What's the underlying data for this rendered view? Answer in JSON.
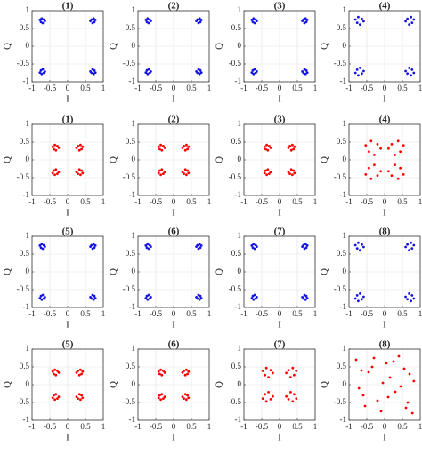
{
  "chart_data": [
    {
      "type": "scatter",
      "title": "(1)",
      "xlabel": "I",
      "ylabel": "Q",
      "xlim": [
        -1,
        1
      ],
      "ylim": [
        -1,
        1
      ],
      "xticks": [
        -1,
        -0.5,
        0,
        0.5,
        1
      ],
      "yticks": [
        -1,
        -0.5,
        0,
        0.5,
        1
      ],
      "grid": true,
      "color": "#1414e6",
      "x": [
        -0.67,
        -0.78,
        -0.7,
        -0.75,
        -0.64,
        -0.73,
        0.67,
        0.78,
        0.7,
        0.75,
        0.64,
        0.73,
        -0.67,
        -0.78,
        -0.7,
        -0.75,
        -0.64,
        -0.73,
        0.67,
        0.78,
        0.7,
        0.75,
        0.64,
        0.73
      ],
      "y": [
        0.75,
        0.74,
        0.65,
        0.68,
        0.71,
        0.78,
        0.75,
        0.74,
        0.65,
        0.68,
        0.71,
        0.78,
        -0.75,
        -0.74,
        -0.65,
        -0.68,
        -0.71,
        -0.78,
        -0.75,
        -0.74,
        -0.65,
        -0.68,
        -0.71,
        -0.78
      ]
    },
    {
      "type": "scatter",
      "title": "(2)",
      "xlabel": "I",
      "ylabel": "Q",
      "xlim": [
        -1,
        1
      ],
      "ylim": [
        -1,
        1
      ],
      "xticks": [
        -1,
        -0.5,
        0,
        0.5,
        1
      ],
      "yticks": [
        -1,
        -0.5,
        0,
        0.5,
        1
      ],
      "grid": true,
      "color": "#1414e6",
      "x": [
        -0.67,
        -0.78,
        -0.7,
        -0.75,
        -0.64,
        -0.73,
        0.67,
        0.78,
        0.7,
        0.75,
        0.64,
        0.73,
        -0.67,
        -0.78,
        -0.7,
        -0.75,
        -0.64,
        -0.73,
        0.67,
        0.78,
        0.7,
        0.75,
        0.64,
        0.73
      ],
      "y": [
        0.75,
        0.74,
        0.65,
        0.68,
        0.71,
        0.78,
        0.75,
        0.74,
        0.65,
        0.68,
        0.71,
        0.78,
        -0.75,
        -0.74,
        -0.65,
        -0.68,
        -0.71,
        -0.78,
        -0.75,
        -0.74,
        -0.65,
        -0.68,
        -0.71,
        -0.78
      ]
    },
    {
      "type": "scatter",
      "title": "(3)",
      "xlabel": "I",
      "ylabel": "Q",
      "xlim": [
        -1,
        1
      ],
      "ylim": [
        -1,
        1
      ],
      "xticks": [
        -1,
        -0.5,
        0,
        0.5,
        1
      ],
      "yticks": [
        -1,
        -0.5,
        0,
        0.5,
        1
      ],
      "grid": true,
      "color": "#1414e6",
      "x": [
        -0.67,
        -0.78,
        -0.7,
        -0.75,
        -0.64,
        -0.73,
        0.67,
        0.78,
        0.7,
        0.75,
        0.64,
        0.73,
        -0.67,
        -0.78,
        -0.7,
        -0.75,
        -0.64,
        -0.73,
        0.67,
        0.78,
        0.7,
        0.75,
        0.64,
        0.73
      ],
      "y": [
        0.75,
        0.74,
        0.65,
        0.68,
        0.71,
        0.78,
        0.75,
        0.74,
        0.65,
        0.68,
        0.71,
        0.78,
        -0.75,
        -0.74,
        -0.65,
        -0.68,
        -0.71,
        -0.78,
        -0.75,
        -0.74,
        -0.65,
        -0.68,
        -0.71,
        -0.78
      ]
    },
    {
      "type": "scatter",
      "title": "(4)",
      "xlabel": "I",
      "ylabel": "Q",
      "xlim": [
        -1,
        1
      ],
      "ylim": [
        -1,
        1
      ],
      "xticks": [
        -1,
        -0.5,
        0,
        0.5,
        1
      ],
      "yticks": [
        -1,
        -0.5,
        0,
        0.5,
        1
      ],
      "grid": true,
      "color": "#1414e6",
      "x": [
        -0.64,
        -0.82,
        -0.69,
        -0.77,
        -0.59,
        -0.74,
        0.64,
        0.82,
        0.69,
        0.77,
        0.59,
        0.74,
        -0.64,
        -0.82,
        -0.69,
        -0.77,
        -0.59,
        -0.74,
        0.64,
        0.82,
        0.69,
        0.77,
        0.59,
        0.74
      ],
      "y": [
        0.77,
        0.75,
        0.61,
        0.66,
        0.7,
        0.82,
        0.77,
        0.75,
        0.61,
        0.66,
        0.7,
        0.82,
        -0.77,
        -0.75,
        -0.61,
        -0.66,
        -0.7,
        -0.82,
        -0.77,
        -0.75,
        -0.61,
        -0.66,
        -0.7,
        -0.82
      ]
    },
    {
      "type": "scatter",
      "title": "(1)",
      "xlabel": "I",
      "ylabel": "Q",
      "xlim": [
        -1,
        1
      ],
      "ylim": [
        -1,
        1
      ],
      "xticks": [
        -1,
        -0.5,
        0,
        0.5,
        1
      ],
      "yticks": [
        -1,
        -0.5,
        0,
        0.5,
        1
      ],
      "grid": true,
      "color": "#ff0000",
      "x": [
        -0.29,
        -0.42,
        -0.33,
        -0.39,
        -0.25,
        -0.36,
        0.29,
        0.42,
        0.33,
        0.39,
        0.25,
        0.36,
        -0.29,
        -0.42,
        -0.33,
        -0.39,
        -0.25,
        -0.36,
        0.29,
        0.42,
        0.33,
        0.39,
        0.25,
        0.36
      ],
      "y": [
        0.39,
        0.37,
        0.27,
        0.3,
        0.34,
        0.42,
        0.39,
        0.37,
        0.27,
        0.3,
        0.34,
        0.42,
        -0.39,
        -0.37,
        -0.27,
        -0.3,
        -0.34,
        -0.42,
        -0.39,
        -0.37,
        -0.27,
        -0.3,
        -0.34,
        -0.42
      ]
    },
    {
      "type": "scatter",
      "title": "(2)",
      "xlabel": "I",
      "ylabel": "Q",
      "xlim": [
        -1,
        1
      ],
      "ylim": [
        -1,
        1
      ],
      "xticks": [
        -1,
        -0.5,
        0,
        0.5,
        1
      ],
      "yticks": [
        -1,
        -0.5,
        0,
        0.5,
        1
      ],
      "grid": true,
      "color": "#ff0000",
      "x": [
        -0.29,
        -0.42,
        -0.33,
        -0.39,
        -0.25,
        -0.36,
        0.29,
        0.42,
        0.33,
        0.39,
        0.25,
        0.36,
        -0.29,
        -0.42,
        -0.33,
        -0.39,
        -0.25,
        -0.36,
        0.29,
        0.42,
        0.33,
        0.39,
        0.25,
        0.36
      ],
      "y": [
        0.39,
        0.37,
        0.27,
        0.3,
        0.34,
        0.42,
        0.39,
        0.37,
        0.27,
        0.3,
        0.34,
        0.42,
        -0.39,
        -0.37,
        -0.27,
        -0.3,
        -0.34,
        -0.42,
        -0.39,
        -0.37,
        -0.27,
        -0.3,
        -0.34,
        -0.42
      ]
    },
    {
      "type": "scatter",
      "title": "(3)",
      "xlabel": "I",
      "ylabel": "Q",
      "xlim": [
        -1,
        1
      ],
      "ylim": [
        -1,
        1
      ],
      "xticks": [
        -1,
        -0.5,
        0,
        0.5,
        1
      ],
      "yticks": [
        -1,
        -0.5,
        0,
        0.5,
        1
      ],
      "grid": true,
      "color": "#ff0000",
      "x": [
        -0.29,
        -0.42,
        -0.33,
        -0.39,
        -0.25,
        -0.36,
        0.29,
        0.42,
        0.33,
        0.39,
        0.25,
        0.36,
        -0.29,
        -0.42,
        -0.33,
        -0.39,
        -0.25,
        -0.36,
        0.29,
        0.42,
        0.33,
        0.39,
        0.25,
        0.36
      ],
      "y": [
        0.39,
        0.37,
        0.27,
        0.3,
        0.34,
        0.42,
        0.39,
        0.37,
        0.27,
        0.3,
        0.34,
        0.42,
        -0.39,
        -0.37,
        -0.27,
        -0.3,
        -0.34,
        -0.42,
        -0.39,
        -0.37,
        -0.27,
        -0.3,
        -0.34,
        -0.42
      ]
    },
    {
      "type": "scatter",
      "title": "(4)",
      "xlabel": "I",
      "ylabel": "Q",
      "xlim": [
        -1,
        1
      ],
      "ylim": [
        -1,
        1
      ],
      "xticks": [
        -1,
        -0.5,
        0,
        0.5,
        1
      ],
      "yticks": [
        -1,
        -0.5,
        0,
        0.5,
        1
      ],
      "grid": true,
      "color": "#ff0000",
      "x": [
        -0.2,
        -0.53,
        -0.29,
        -0.44,
        -0.11,
        -0.38,
        0.2,
        0.53,
        0.29,
        0.44,
        0.11,
        0.38,
        -0.2,
        -0.53,
        -0.29,
        -0.44,
        -0.11,
        -0.38,
        0.2,
        0.53,
        0.29,
        0.44,
        0.11,
        0.38
      ],
      "y": [
        0.44,
        0.41,
        0.14,
        0.23,
        0.32,
        0.53,
        0.44,
        0.41,
        0.14,
        0.23,
        0.32,
        0.53,
        -0.44,
        -0.41,
        -0.14,
        -0.23,
        -0.32,
        -0.53,
        -0.44,
        -0.41,
        -0.14,
        -0.23,
        -0.32,
        -0.53
      ]
    },
    {
      "type": "scatter",
      "title": "(5)",
      "xlabel": "I",
      "ylabel": "Q",
      "xlim": [
        -1,
        1
      ],
      "ylim": [
        -1,
        1
      ],
      "xticks": [
        -1,
        -0.5,
        0,
        0.5,
        1
      ],
      "yticks": [
        -1,
        -0.5,
        0,
        0.5,
        1
      ],
      "grid": true,
      "color": "#1414e6",
      "x": [
        -0.67,
        -0.78,
        -0.7,
        -0.75,
        -0.64,
        -0.73,
        0.67,
        0.78,
        0.7,
        0.75,
        0.64,
        0.73,
        -0.67,
        -0.78,
        -0.7,
        -0.75,
        -0.64,
        -0.73,
        0.67,
        0.78,
        0.7,
        0.75,
        0.64,
        0.73
      ],
      "y": [
        0.75,
        0.74,
        0.65,
        0.68,
        0.71,
        0.78,
        0.75,
        0.74,
        0.65,
        0.68,
        0.71,
        0.78,
        -0.75,
        -0.74,
        -0.65,
        -0.68,
        -0.71,
        -0.78,
        -0.75,
        -0.74,
        -0.65,
        -0.68,
        -0.71,
        -0.78
      ]
    },
    {
      "type": "scatter",
      "title": "(6)",
      "xlabel": "I",
      "ylabel": "Q",
      "xlim": [
        -1,
        1
      ],
      "ylim": [
        -1,
        1
      ],
      "xticks": [
        -1,
        -0.5,
        0,
        0.5,
        1
      ],
      "yticks": [
        -1,
        -0.5,
        0,
        0.5,
        1
      ],
      "grid": true,
      "color": "#1414e6",
      "x": [
        -0.67,
        -0.78,
        -0.7,
        -0.75,
        -0.64,
        -0.73,
        0.67,
        0.78,
        0.7,
        0.75,
        0.64,
        0.73,
        -0.67,
        -0.78,
        -0.7,
        -0.75,
        -0.64,
        -0.73,
        0.67,
        0.78,
        0.7,
        0.75,
        0.64,
        0.73
      ],
      "y": [
        0.75,
        0.74,
        0.65,
        0.68,
        0.71,
        0.78,
        0.75,
        0.74,
        0.65,
        0.68,
        0.71,
        0.78,
        -0.75,
        -0.74,
        -0.65,
        -0.68,
        -0.71,
        -0.78,
        -0.75,
        -0.74,
        -0.65,
        -0.68,
        -0.71,
        -0.78
      ]
    },
    {
      "type": "scatter",
      "title": "(7)",
      "xlabel": "I",
      "ylabel": "Q",
      "xlim": [
        -1,
        1
      ],
      "ylim": [
        -1,
        1
      ],
      "xticks": [
        -1,
        -0.5,
        0,
        0.5,
        1
      ],
      "yticks": [
        -1,
        -0.5,
        0,
        0.5,
        1
      ],
      "grid": true,
      "color": "#1414e6",
      "x": [
        -0.67,
        -0.78,
        -0.7,
        -0.75,
        -0.64,
        -0.73,
        0.67,
        0.78,
        0.7,
        0.75,
        0.64,
        0.73,
        -0.67,
        -0.78,
        -0.7,
        -0.75,
        -0.64,
        -0.73,
        0.67,
        0.78,
        0.7,
        0.75,
        0.64,
        0.73
      ],
      "y": [
        0.75,
        0.74,
        0.65,
        0.68,
        0.71,
        0.78,
        0.75,
        0.74,
        0.65,
        0.68,
        0.71,
        0.78,
        -0.75,
        -0.74,
        -0.65,
        -0.68,
        -0.71,
        -0.78,
        -0.75,
        -0.74,
        -0.65,
        -0.68,
        -0.71,
        -0.78
      ]
    },
    {
      "type": "scatter",
      "title": "(8)",
      "xlabel": "I",
      "ylabel": "Q",
      "xlim": [
        -1,
        1
      ],
      "ylim": [
        -1,
        1
      ],
      "xticks": [
        -1,
        -0.5,
        0,
        0.5,
        1
      ],
      "yticks": [
        -1,
        -0.5,
        0,
        0.5,
        1
      ],
      "grid": true,
      "color": "#1414e6",
      "x": [
        -0.64,
        -0.82,
        -0.69,
        -0.77,
        -0.59,
        -0.74,
        0.64,
        0.82,
        0.69,
        0.77,
        0.59,
        0.74,
        -0.64,
        -0.82,
        -0.69,
        -0.77,
        -0.59,
        -0.74,
        0.64,
        0.82,
        0.69,
        0.77,
        0.59,
        0.74
      ],
      "y": [
        0.77,
        0.75,
        0.61,
        0.66,
        0.7,
        0.82,
        0.77,
        0.75,
        0.61,
        0.66,
        0.7,
        0.82,
        -0.77,
        -0.75,
        -0.61,
        -0.66,
        -0.7,
        -0.82,
        -0.77,
        -0.75,
        -0.61,
        -0.66,
        -0.7,
        -0.82
      ]
    },
    {
      "type": "scatter",
      "title": "(5)",
      "xlabel": "I",
      "ylabel": "Q",
      "xlim": [
        -1,
        1
      ],
      "ylim": [
        -1,
        1
      ],
      "xticks": [
        -1,
        -0.5,
        0,
        0.5,
        1
      ],
      "yticks": [
        -1,
        -0.5,
        0,
        0.5,
        1
      ],
      "grid": true,
      "color": "#ff0000",
      "x": [
        -0.29,
        -0.42,
        -0.33,
        -0.39,
        -0.25,
        -0.36,
        0.29,
        0.42,
        0.33,
        0.39,
        0.25,
        0.36,
        -0.29,
        -0.42,
        -0.33,
        -0.39,
        -0.25,
        -0.36,
        0.29,
        0.42,
        0.33,
        0.39,
        0.25,
        0.36
      ],
      "y": [
        0.39,
        0.37,
        0.27,
        0.3,
        0.34,
        0.42,
        0.39,
        0.37,
        0.27,
        0.3,
        0.34,
        0.42,
        -0.39,
        -0.37,
        -0.27,
        -0.3,
        -0.34,
        -0.42,
        -0.39,
        -0.37,
        -0.27,
        -0.3,
        -0.34,
        -0.42
      ]
    },
    {
      "type": "scatter",
      "title": "(6)",
      "xlabel": "I",
      "ylabel": "Q",
      "xlim": [
        -1,
        1
      ],
      "ylim": [
        -1,
        1
      ],
      "xticks": [
        -1,
        -0.5,
        0,
        0.5,
        1
      ],
      "yticks": [
        -1,
        -0.5,
        0,
        0.5,
        1
      ],
      "grid": true,
      "color": "#ff0000",
      "x": [
        -0.29,
        -0.42,
        -0.33,
        -0.39,
        -0.25,
        -0.36,
        0.29,
        0.42,
        0.33,
        0.39,
        0.25,
        0.36,
        -0.29,
        -0.42,
        -0.33,
        -0.39,
        -0.25,
        -0.36,
        0.29,
        0.42,
        0.33,
        0.39,
        0.25,
        0.36
      ],
      "y": [
        0.39,
        0.37,
        0.27,
        0.3,
        0.34,
        0.42,
        0.39,
        0.37,
        0.27,
        0.3,
        0.34,
        0.42,
        -0.39,
        -0.37,
        -0.27,
        -0.3,
        -0.34,
        -0.42,
        -0.39,
        -0.37,
        -0.27,
        -0.3,
        -0.34,
        -0.42
      ]
    },
    {
      "type": "scatter",
      "title": "(7)",
      "xlabel": "I",
      "ylabel": "Q",
      "xlim": [
        -1,
        1
      ],
      "ylim": [
        -1,
        1
      ],
      "xticks": [
        -1,
        -0.5,
        0,
        0.5,
        1
      ],
      "yticks": [
        -1,
        -0.5,
        0,
        0.5,
        1
      ],
      "grid": true,
      "color": "#ff0000",
      "x": [
        -0.25,
        -0.47,
        -0.31,
        -0.41,
        -0.19,
        -0.37,
        0.25,
        0.47,
        0.31,
        0.41,
        0.19,
        0.37,
        -0.25,
        -0.47,
        -0.31,
        -0.41,
        -0.19,
        -0.37,
        0.25,
        0.47,
        0.31,
        0.41,
        0.19,
        0.37
      ],
      "y": [
        0.41,
        0.39,
        0.21,
        0.27,
        0.33,
        0.47,
        0.41,
        0.39,
        0.21,
        0.27,
        0.33,
        0.47,
        -0.41,
        -0.39,
        -0.21,
        -0.27,
        -0.33,
        -0.47,
        -0.41,
        -0.39,
        -0.21,
        -0.27,
        -0.33,
        -0.47
      ]
    },
    {
      "type": "scatter",
      "title": "(8)",
      "xlabel": "I",
      "ylabel": "Q",
      "xlim": [
        -1,
        1
      ],
      "ylim": [
        -1,
        1
      ],
      "xticks": [
        -1,
        -0.5,
        0,
        0.5,
        1
      ],
      "yticks": [
        -1,
        -0.5,
        0,
        0.5,
        1
      ],
      "grid": true,
      "color": "#ff0000",
      "x": [
        -0.8,
        -0.6,
        -0.35,
        -0.1,
        0.15,
        0.4,
        0.65,
        0.82,
        -0.72,
        -0.45,
        -0.2,
        0.05,
        0.3,
        0.55,
        0.78,
        -0.55,
        -0.3,
        0.1,
        0.45,
        0.7,
        -0.65,
        -0.05,
        0.25,
        0.6
      ],
      "y": [
        0.7,
        -0.3,
        0.5,
        -0.75,
        0.2,
        0.8,
        -0.5,
        0.1,
        -0.1,
        0.35,
        -0.45,
        0.6,
        -0.2,
        0.45,
        -0.8,
        -0.6,
        0.75,
        -0.35,
        -0.05,
        0.3,
        0.4,
        0.05,
        0.65,
        -0.65
      ]
    }
  ]
}
